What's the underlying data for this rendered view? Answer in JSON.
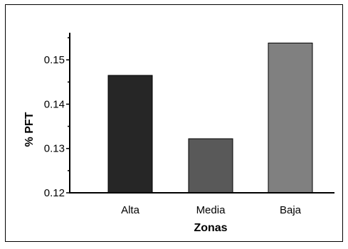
{
  "chart_data": {
    "type": "bar",
    "title": "",
    "xlabel": "Zonas",
    "ylabel": "% PFT",
    "categories": [
      "Alta",
      "Media",
      "Baja"
    ],
    "values": [
      0.1465,
      0.1322,
      0.1538
    ],
    "ylim": [
      0.12,
      0.155
    ],
    "yticks": [
      "0.12",
      "0.13",
      "0.14",
      "0.15"
    ],
    "ytick_values": [
      0.12,
      0.13,
      0.14,
      0.15
    ],
    "bar_colors": [
      "#262626",
      "#595959",
      "#808080"
    ],
    "grid": false,
    "legend": "none"
  }
}
